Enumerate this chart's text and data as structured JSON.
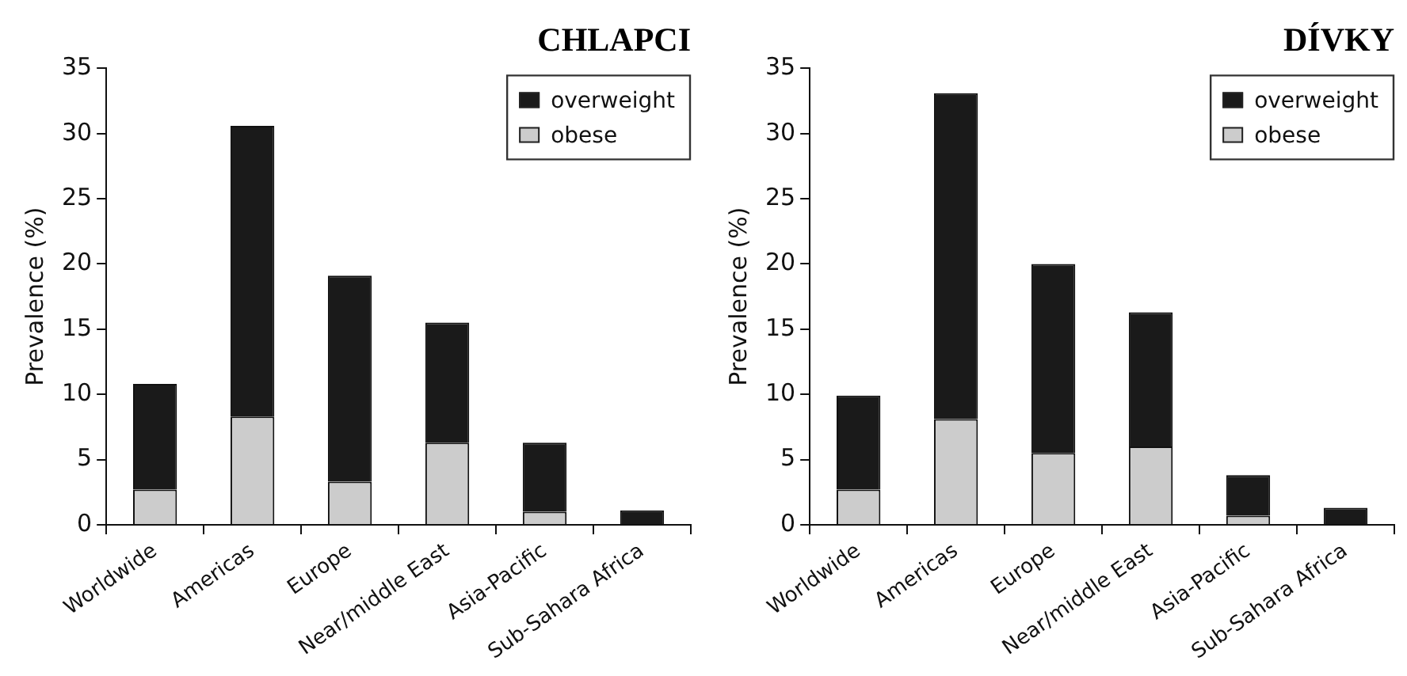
{
  "chart_data": [
    {
      "type": "bar",
      "title": "CHLAPCI",
      "ylabel": "Prevalence (%)",
      "categories": [
        "Worldwide",
        "Americas",
        "Europe",
        "Near/middle East",
        "Asia-Pacific",
        "Sub-Sahara Africa"
      ],
      "stacked": true,
      "ylim": [
        0,
        35
      ],
      "yticks": [
        0,
        5,
        10,
        15,
        20,
        25,
        30,
        35
      ],
      "grid": false,
      "legend": "top right",
      "series": [
        {
          "name": "obese",
          "color": "#cccccc",
          "values": [
            2.7,
            8.3,
            3.3,
            6.3,
            1.0,
            0
          ]
        },
        {
          "name": "overweight",
          "color": "#1a1a1a",
          "values": [
            8.1,
            22.3,
            15.8,
            9.2,
            5.3,
            1.1
          ]
        }
      ]
    },
    {
      "type": "bar",
      "title": "DÍVKY",
      "ylabel": "Prevalence (%)",
      "categories": [
        "Worldwide",
        "Americas",
        "Europe",
        "Near/middle East",
        "Asia-Pacific",
        "Sub-Sahara Africa"
      ],
      "stacked": true,
      "ylim": [
        0,
        35
      ],
      "yticks": [
        0,
        5,
        10,
        15,
        20,
        25,
        30,
        35
      ],
      "grid": false,
      "legend": "top right",
      "series": [
        {
          "name": "obese",
          "color": "#cccccc",
          "values": [
            2.7,
            8.1,
            5.5,
            6.0,
            0.7,
            0
          ]
        },
        {
          "name": "overweight",
          "color": "#1a1a1a",
          "values": [
            7.2,
            25.0,
            14.5,
            10.3,
            3.1,
            1.3
          ]
        }
      ]
    }
  ]
}
